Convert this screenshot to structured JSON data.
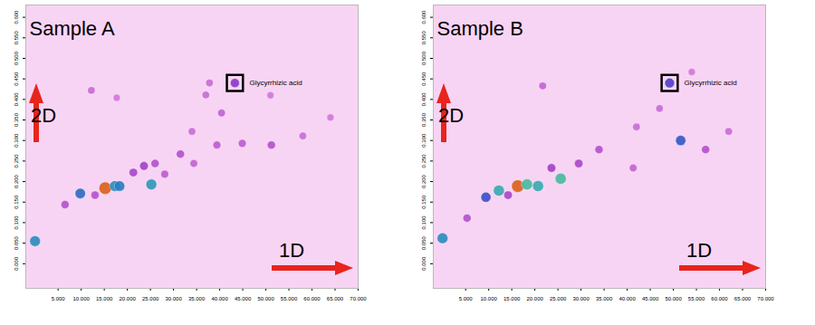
{
  "chart_data": [
    {
      "type": "scatter",
      "title": "Sample A",
      "xlabel": "1D",
      "ylabel": "2D",
      "xlim": [
        -2,
        70
      ],
      "ylim": [
        -0.06,
        0.63
      ],
      "xticks": [
        {
          "value": 5,
          "label": "5.000"
        },
        {
          "value": 10,
          "label": "10.000"
        },
        {
          "value": 15,
          "label": "15.000"
        },
        {
          "value": 20,
          "label": "20.000"
        },
        {
          "value": 25,
          "label": "25.000"
        },
        {
          "value": 30,
          "label": "30.000"
        },
        {
          "value": 35,
          "label": "35.000"
        },
        {
          "value": 40,
          "label": "40.000"
        },
        {
          "value": 45,
          "label": "45.000"
        },
        {
          "value": 50,
          "label": "50.000"
        },
        {
          "value": 55,
          "label": "55.000"
        },
        {
          "value": 60,
          "label": "60.000"
        },
        {
          "value": 65,
          "label": "65.000"
        },
        {
          "value": 70,
          "label": "70.000"
        }
      ],
      "yticks": [
        {
          "value": 0,
          "label": "0.000"
        },
        {
          "value": 0.05,
          "label": "0.050"
        },
        {
          "value": 0.1,
          "label": "0.100"
        },
        {
          "value": 0.15,
          "label": "0.150"
        },
        {
          "value": 0.2,
          "label": "0.200"
        },
        {
          "value": 0.25,
          "label": "0.250"
        },
        {
          "value": 0.3,
          "label": "0.300"
        },
        {
          "value": 0.35,
          "label": "0.350"
        },
        {
          "value": 0.4,
          "label": "0.400"
        },
        {
          "value": 0.45,
          "label": "0.450"
        },
        {
          "value": 0.5,
          "label": "0.500"
        },
        {
          "value": 0.55,
          "label": "0.550"
        },
        {
          "value": 0.6,
          "label": "0.600"
        }
      ],
      "x": [
        0,
        6.5,
        9.8,
        13,
        15.2,
        17.3,
        18.3,
        21.3,
        23.6,
        25.2,
        26,
        28.1,
        31.5,
        34.4,
        34,
        39.4,
        37,
        37.8,
        40.4,
        43.3,
        44.9,
        51.2,
        51,
        58,
        64,
        12.2,
        17.7
      ],
      "y": [
        0.055,
        0.144,
        0.171,
        0.167,
        0.184,
        0.189,
        0.189,
        0.222,
        0.238,
        0.193,
        0.244,
        0.218,
        0.267,
        0.244,
        0.322,
        0.289,
        0.411,
        0.44,
        0.367,
        0.44,
        0.293,
        0.289,
        0.41,
        0.311,
        0.356,
        0.422,
        0.404
      ],
      "intensity": [
        60,
        25,
        55,
        25,
        95,
        60,
        58,
        28,
        30,
        62,
        25,
        22,
        25,
        20,
        18,
        22,
        18,
        18,
        20,
        35,
        22,
        25,
        15,
        18,
        15,
        18,
        15
      ],
      "intensity_range": [
        0,
        100
      ],
      "annotations": [
        {
          "text": "Glycyrrhizic acid",
          "x": 43.3,
          "y": 0.44
        }
      ]
    },
    {
      "type": "scatter",
      "title": "Sample B",
      "xlabel": "1D",
      "ylabel": "2D",
      "xlim": [
        -2,
        70
      ],
      "ylim": [
        -0.06,
        0.63
      ],
      "xticks": [
        {
          "value": 5,
          "label": "5.000"
        },
        {
          "value": 10,
          "label": "10.000"
        },
        {
          "value": 15,
          "label": "15.000"
        },
        {
          "value": 20,
          "label": "20.000"
        },
        {
          "value": 25,
          "label": "25.000"
        },
        {
          "value": 30,
          "label": "30.000"
        },
        {
          "value": 35,
          "label": "35.000"
        },
        {
          "value": 40,
          "label": "40.000"
        },
        {
          "value": 45,
          "label": "45.000"
        },
        {
          "value": 50,
          "label": "50.000"
        },
        {
          "value": 55,
          "label": "55.000"
        },
        {
          "value": 60,
          "label": "60.000"
        },
        {
          "value": 65,
          "label": "65.000"
        },
        {
          "value": 70,
          "label": "70.000"
        }
      ],
      "yticks": [
        {
          "value": 0,
          "label": "0.000"
        },
        {
          "value": 0.05,
          "label": "0.050"
        },
        {
          "value": 0.1,
          "label": "0.100"
        },
        {
          "value": 0.15,
          "label": "0.150"
        },
        {
          "value": 0.2,
          "label": "0.200"
        },
        {
          "value": 0.25,
          "label": "0.250"
        },
        {
          "value": 0.3,
          "label": "0.300"
        },
        {
          "value": 0.35,
          "label": "0.350"
        },
        {
          "value": 0.4,
          "label": "0.400"
        },
        {
          "value": 0.45,
          "label": "0.450"
        },
        {
          "value": 0.5,
          "label": "0.500"
        },
        {
          "value": 0.55,
          "label": "0.550"
        },
        {
          "value": 0.6,
          "label": "0.600"
        }
      ],
      "x": [
        0,
        5.3,
        9.4,
        12.2,
        14.2,
        16.3,
        18.3,
        20.7,
        25.6,
        23.6,
        29.5,
        33.9,
        41.3,
        42,
        47,
        49.2,
        51.6,
        57,
        62,
        54,
        21.7
      ],
      "y": [
        0.062,
        0.111,
        0.162,
        0.178,
        0.167,
        0.189,
        0.193,
        0.189,
        0.207,
        0.233,
        0.244,
        0.278,
        0.233,
        0.333,
        0.378,
        0.44,
        0.3,
        0.278,
        0.322,
        0.467,
        0.433
      ],
      "intensity": [
        60,
        25,
        50,
        65,
        28,
        95,
        68,
        65,
        68,
        30,
        28,
        25,
        20,
        18,
        18,
        45,
        52,
        25,
        18,
        15,
        20
      ],
      "intensity_range": [
        0,
        100
      ],
      "annotations": [
        {
          "text": "Glycyrrhizic acid",
          "x": 49.2,
          "y": 0.44
        }
      ]
    }
  ]
}
